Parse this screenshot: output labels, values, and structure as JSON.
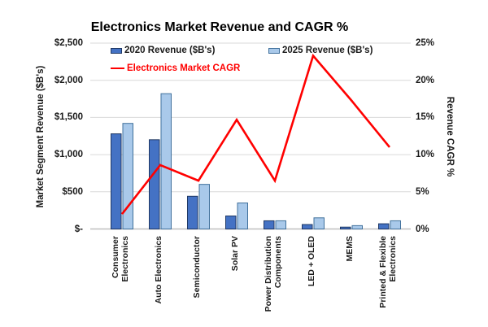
{
  "title": "Electronics Market Revenue and CAGR %",
  "legend": {
    "series_2020": "2020 Revenue ($B's)",
    "series_2025": "2025 Revenue ($B's)",
    "series_cagr": "Electronics Market CAGR"
  },
  "axes": {
    "left": {
      "title": "Market Segment Revenue ($B's)",
      "ticks": [
        "$2,500",
        "$2,000",
        "$1,500",
        "$1,000",
        "$500",
        "$-"
      ]
    },
    "right": {
      "title": "Revenue CAGR %",
      "ticks": [
        "25%",
        "20%",
        "15%",
        "10%",
        "5%",
        "0%"
      ]
    }
  },
  "chart_data": {
    "type": "combo-bar-line",
    "title": "Electronics Market Revenue and CAGR %",
    "categories": [
      "Consumer Electronics",
      "Auto Electronics",
      "Semiconductor",
      "Solar PV",
      "Power Distribution Components",
      "LED + OLED",
      "MEMS",
      "Printed & Flexible Electronics"
    ],
    "category_label_lines": [
      [
        "Consumer",
        "Electronics"
      ],
      [
        "Auto Electronics"
      ],
      [
        "Semiconductor"
      ],
      [
        "Solar PV"
      ],
      [
        "Power Distribution",
        "Components"
      ],
      [
        "LED + OLED"
      ],
      [
        "MEMS"
      ],
      [
        "Printed & Flexible",
        "Electronics"
      ]
    ],
    "series": [
      {
        "name": "2020 Revenue ($B's)",
        "type": "bar",
        "axis": "left",
        "values": [
          1280,
          1200,
          440,
          175,
          110,
          60,
          25,
          70
        ],
        "fill": "#4472C4",
        "stroke": "#1F3864"
      },
      {
        "name": "2025 Revenue ($B's)",
        "type": "bar",
        "axis": "left",
        "values": [
          1420,
          1820,
          600,
          350,
          110,
          150,
          45,
          110
        ],
        "fill": "#A9C9EA",
        "stroke": "#41719C"
      },
      {
        "name": "Electronics Market CAGR",
        "type": "line",
        "axis": "right",
        "values": [
          2,
          8.6,
          6.5,
          14.7,
          6.5,
          23.3,
          17.3,
          11
        ],
        "color": "#FF0000"
      }
    ],
    "left_ylabel": "Market Segment Revenue ($B's)",
    "right_ylabel": "Revenue CAGR %",
    "left_ylim": [
      0,
      2500
    ],
    "left_step": 500,
    "right_ylim": [
      0,
      25
    ],
    "right_step": 5,
    "grid": true,
    "legend_position": "top-inside"
  },
  "colors": {
    "grid": "#D9D9D9",
    "axis_line": "#BFBFBF",
    "text": "#1A1A1A",
    "title": "#000000",
    "cagr_red": "#FF0000",
    "bar_2020": "#4472C4",
    "bar_2025": "#A9C9EA"
  }
}
